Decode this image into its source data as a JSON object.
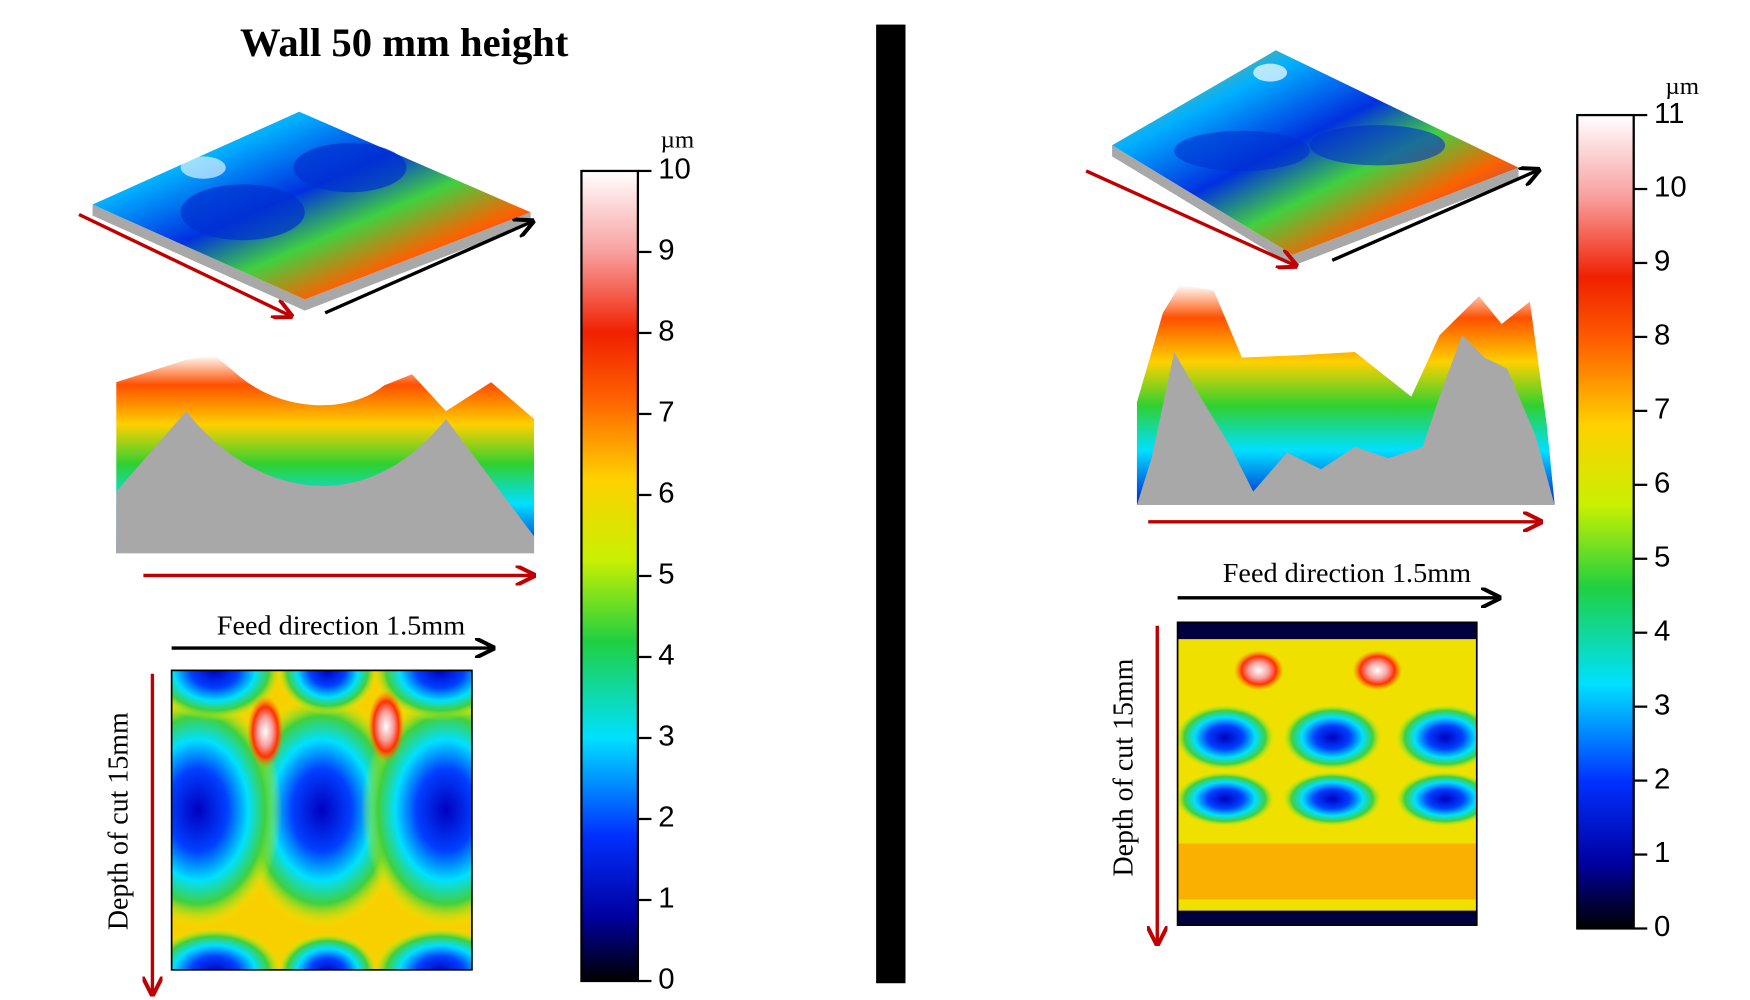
{
  "title": "Wall 50 mm height",
  "left": {
    "feed_label": "Feed direction 1.5mm",
    "depth_label": "Depth of cut 15mm",
    "colorbar": {
      "unit": "µm",
      "ticks": [
        0,
        1,
        2,
        3,
        4,
        5,
        6,
        7,
        8,
        9,
        10
      ]
    }
  },
  "right": {
    "feed_label": "Feed direction 1.5mm",
    "depth_label": "Depth of cut 15mm",
    "colorbar": {
      "unit": "µm",
      "ticks": [
        0,
        1,
        2,
        3,
        4,
        5,
        6,
        7,
        8,
        9,
        10,
        11
      ]
    }
  }
}
